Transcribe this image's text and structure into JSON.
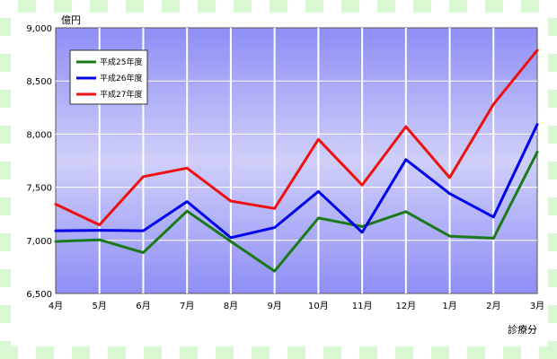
{
  "chart_data": {
    "type": "line",
    "ylabel": "億円",
    "xlabel": "診療分",
    "categories": [
      "4月",
      "5月",
      "6月",
      "7月",
      "8月",
      "9月",
      "10月",
      "11月",
      "12月",
      "1月",
      "2月",
      "3月"
    ],
    "ylim": [
      6500,
      9000
    ],
    "yticks": [
      6500,
      7000,
      7500,
      8000,
      8500,
      9000
    ],
    "ytick_labels": [
      "6,500",
      "7,000",
      "7,500",
      "8,000",
      "8,500",
      "9,000"
    ],
    "grid": true,
    "legend_position": "top-left",
    "series": [
      {
        "name": "平成25年度",
        "color": "#1a7a1a",
        "values": [
          6990,
          7005,
          6885,
          7275,
          6990,
          6710,
          7210,
          7130,
          7270,
          7040,
          7020,
          7830
        ]
      },
      {
        "name": "平成26年度",
        "color": "#0000ee",
        "values": [
          7090,
          7095,
          7090,
          7365,
          7025,
          7120,
          7460,
          7075,
          7760,
          7440,
          7220,
          8090
        ]
      },
      {
        "name": "平成27年度",
        "color": "#ee1111",
        "values": [
          7340,
          7145,
          7600,
          7680,
          7370,
          7300,
          7950,
          7520,
          8070,
          7590,
          8280,
          8790
        ]
      }
    ]
  }
}
